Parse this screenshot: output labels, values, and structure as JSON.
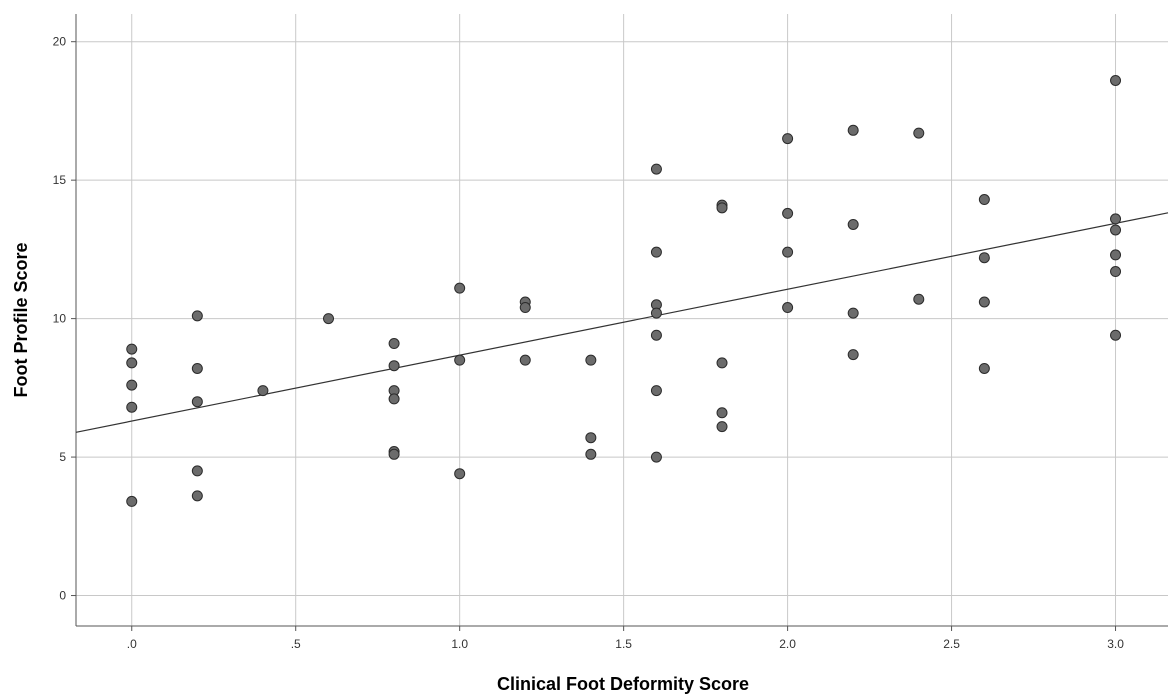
{
  "chart_data": {
    "type": "scatter",
    "title": "",
    "xlabel": "Clinical Foot Deformity Score",
    "ylabel": "Foot Profile Score",
    "xlim": [
      -0.17,
      3.16
    ],
    "ylim": [
      -1.1,
      21.0
    ],
    "x_ticks": [
      0,
      0.5,
      1.0,
      1.5,
      2.0,
      2.5,
      3.0
    ],
    "x_tick_labels": [
      ".0",
      ".5",
      "1.0",
      "1.5",
      "2.0",
      "2.5",
      "3.0"
    ],
    "y_ticks": [
      0,
      5,
      10,
      15,
      20
    ],
    "y_tick_labels": [
      "0",
      "5",
      "10",
      "15",
      "20"
    ],
    "grid": true,
    "colors": {
      "point_fill": "#6b6b6b",
      "point_stroke": "#2b2b2b",
      "grid": "#c8c8c8",
      "fit_line": "#333333"
    },
    "series": [
      {
        "points": [
          [
            0.0,
            8.9
          ],
          [
            0.0,
            8.4
          ],
          [
            0.0,
            7.6
          ],
          [
            0.0,
            6.8
          ],
          [
            0.0,
            3.4
          ],
          [
            0.2,
            10.1
          ],
          [
            0.2,
            8.2
          ],
          [
            0.2,
            7.0
          ],
          [
            0.2,
            4.5
          ],
          [
            0.2,
            3.6
          ],
          [
            0.4,
            7.4
          ],
          [
            0.6,
            10.0
          ],
          [
            0.8,
            9.1
          ],
          [
            0.8,
            8.3
          ],
          [
            0.8,
            7.4
          ],
          [
            0.8,
            7.1
          ],
          [
            0.8,
            5.2
          ],
          [
            0.8,
            5.1
          ],
          [
            1.0,
            11.1
          ],
          [
            1.0,
            8.5
          ],
          [
            1.0,
            4.4
          ],
          [
            1.2,
            10.6
          ],
          [
            1.2,
            10.4
          ],
          [
            1.2,
            8.5
          ],
          [
            1.4,
            8.5
          ],
          [
            1.4,
            5.7
          ],
          [
            1.4,
            5.1
          ],
          [
            1.6,
            15.4
          ],
          [
            1.6,
            12.4
          ],
          [
            1.6,
            10.5
          ],
          [
            1.6,
            10.2
          ],
          [
            1.6,
            9.4
          ],
          [
            1.6,
            7.4
          ],
          [
            1.6,
            5.0
          ],
          [
            1.8,
            14.1
          ],
          [
            1.8,
            14.0
          ],
          [
            1.8,
            8.4
          ],
          [
            1.8,
            6.6
          ],
          [
            1.8,
            6.1
          ],
          [
            2.0,
            16.5
          ],
          [
            2.0,
            13.8
          ],
          [
            2.0,
            12.4
          ],
          [
            2.0,
            10.4
          ],
          [
            2.2,
            16.8
          ],
          [
            2.2,
            13.4
          ],
          [
            2.2,
            10.2
          ],
          [
            2.2,
            8.7
          ],
          [
            2.4,
            16.7
          ],
          [
            2.4,
            10.7
          ],
          [
            2.6,
            14.3
          ],
          [
            2.6,
            12.2
          ],
          [
            2.6,
            10.6
          ],
          [
            2.6,
            8.2
          ],
          [
            3.0,
            18.6
          ],
          [
            3.0,
            13.6
          ],
          [
            3.0,
            13.2
          ],
          [
            3.0,
            12.3
          ],
          [
            3.0,
            11.7
          ],
          [
            3.0,
            9.4
          ]
        ]
      }
    ],
    "fit_line": {
      "intercept": 6.3,
      "slope": 2.38
    }
  }
}
